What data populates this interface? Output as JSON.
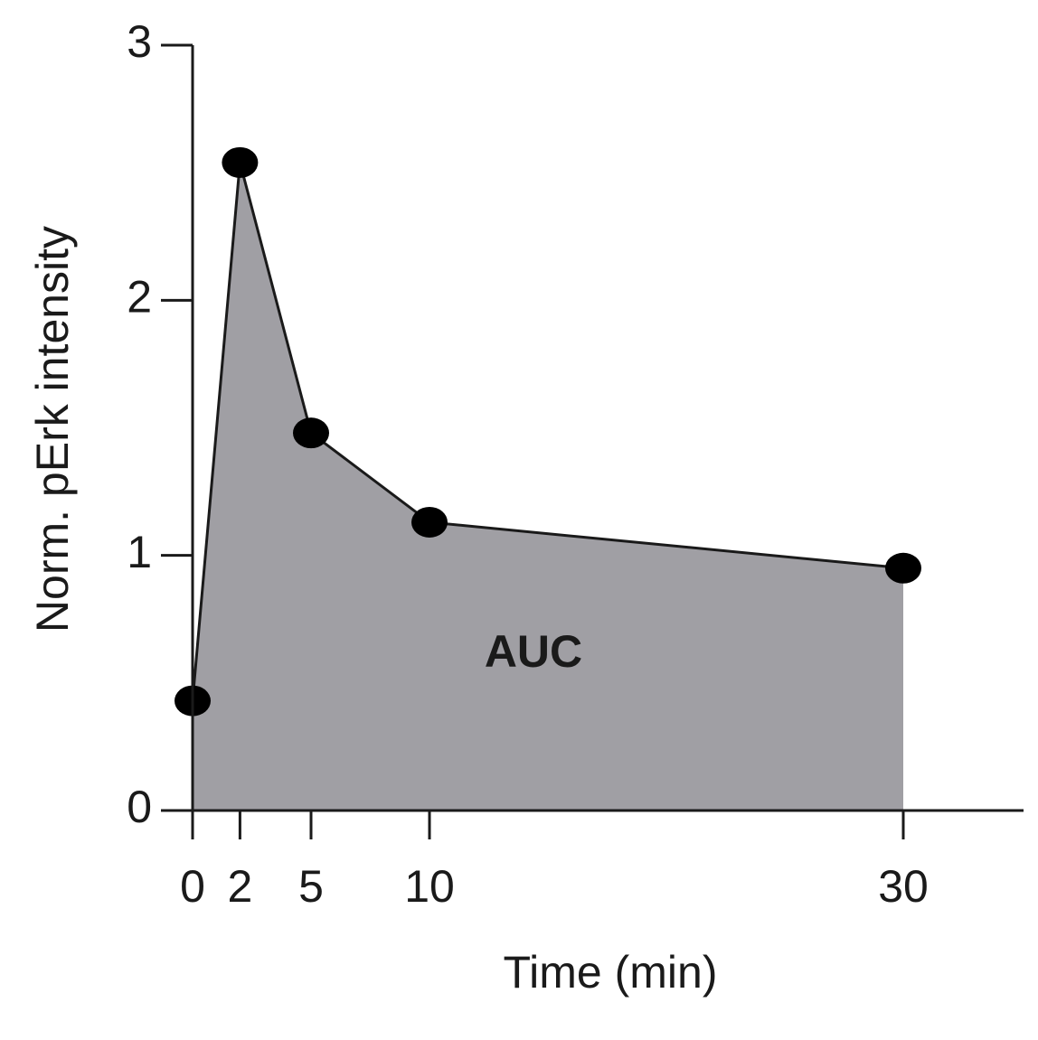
{
  "chart_data": {
    "type": "area",
    "x": [
      0,
      2,
      5,
      10,
      30
    ],
    "values": [
      0.43,
      2.54,
      1.48,
      1.13,
      0.95
    ],
    "color": "#a09fa4",
    "line_color": "#1a1a1a",
    "xlim": [
      0,
      35
    ],
    "ylim": [
      0,
      3
    ],
    "xticks": [
      0,
      2,
      5,
      10,
      30
    ],
    "yticks": [
      0,
      1,
      2,
      3
    ],
    "xlabel": "Time (min)",
    "ylabel": "Norm. pErk intensity",
    "annotation": "AUC"
  }
}
